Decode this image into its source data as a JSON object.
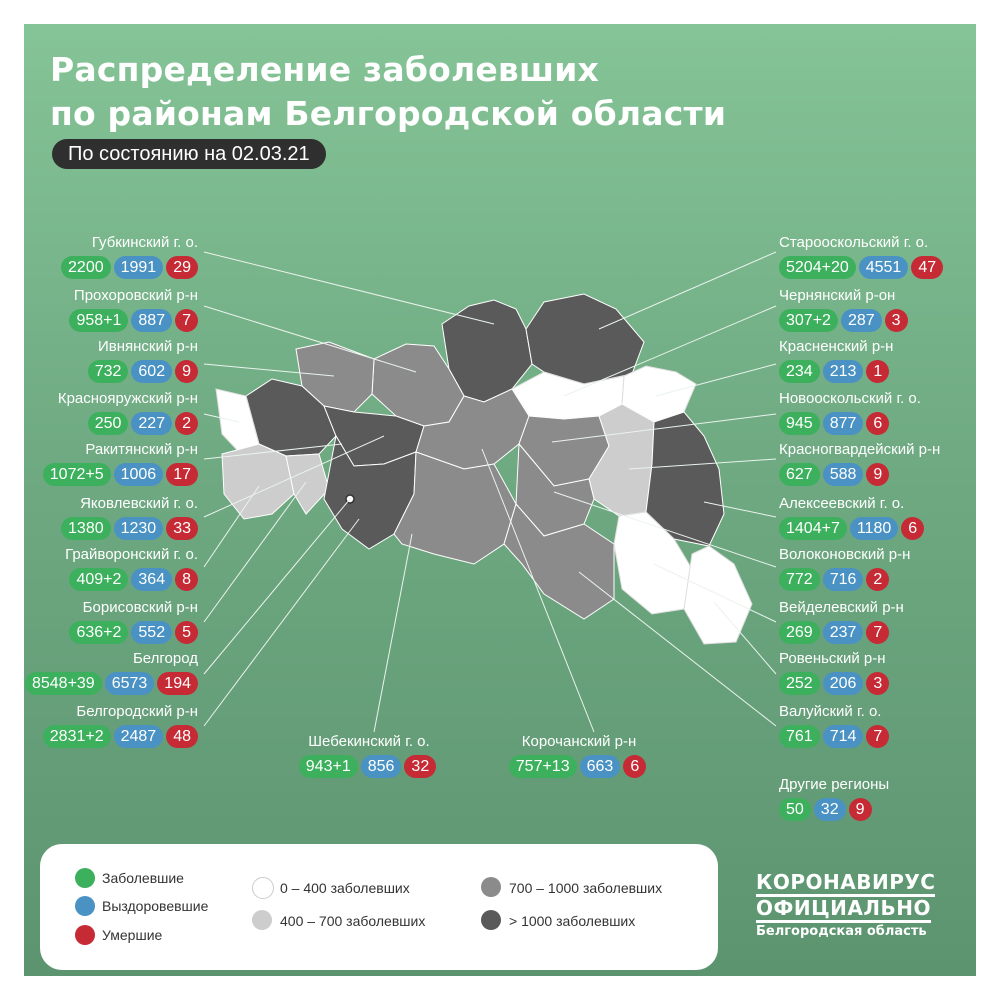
{
  "title_line1": "Распределение заболевших",
  "title_line2": "по районам Белгородской области",
  "date_label": "По состоянию на 02.03.21",
  "colors": {
    "confirmed": "#3cb05c",
    "recovered": "#4a92c4",
    "deaths": "#c62a35",
    "range_0_400": "#ffffff",
    "range_400_700": "#cdcdcd",
    "range_700_1000": "#8b8b8b",
    "range_1000_plus": "#5a5a5a"
  },
  "districts_left": [
    {
      "name": "Губкинский г. о.",
      "confirmed": "2200",
      "recovered": "1991",
      "deaths": "29"
    },
    {
      "name": "Прохоровский р-н",
      "confirmed": "958+1",
      "recovered": "887",
      "deaths": "7"
    },
    {
      "name": "Ивнянский р-н",
      "confirmed": "732",
      "recovered": "602",
      "deaths": "9"
    },
    {
      "name": "Краснояружский р-н",
      "confirmed": "250",
      "recovered": "227",
      "deaths": "2"
    },
    {
      "name": "Ракитянский р-н",
      "confirmed": "1072+5",
      "recovered": "1006",
      "deaths": "17"
    },
    {
      "name": "Яковлевский г. о.",
      "confirmed": "1380",
      "recovered": "1230",
      "deaths": "33"
    },
    {
      "name": "Грайворонский г. о.",
      "confirmed": "409+2",
      "recovered": "364",
      "deaths": "8"
    },
    {
      "name": "Борисовский р-н",
      "confirmed": "636+2",
      "recovered": "552",
      "deaths": "5"
    },
    {
      "name": "Белгород",
      "confirmed": "8548+39",
      "recovered": "6573",
      "deaths": "194"
    },
    {
      "name": "Белгородский р-н",
      "confirmed": "2831+2",
      "recovered": "2487",
      "deaths": "48"
    }
  ],
  "districts_right": [
    {
      "name": "Старооскольский г. о.",
      "confirmed": "5204+20",
      "recovered": "4551",
      "deaths": "47"
    },
    {
      "name": "Чернянский р-он",
      "confirmed": "307+2",
      "recovered": "287",
      "deaths": "3"
    },
    {
      "name": "Красненский р-н",
      "confirmed": "234",
      "recovered": "213",
      "deaths": "1"
    },
    {
      "name": "Новооскольский г. о.",
      "confirmed": "945",
      "recovered": "877",
      "deaths": "6"
    },
    {
      "name": "Красногвардейский р-н",
      "confirmed": "627",
      "recovered": "588",
      "deaths": "9"
    },
    {
      "name": "Алексеевский г. о.",
      "confirmed": "1404+7",
      "recovered": "1180",
      "deaths": "6"
    },
    {
      "name": "Волоконовский р-н",
      "confirmed": "772",
      "recovered": "716",
      "deaths": "2"
    },
    {
      "name": "Вейделевский р-н",
      "confirmed": "269",
      "recovered": "237",
      "deaths": "7"
    },
    {
      "name": "Ровеньский р-н",
      "confirmed": "252",
      "recovered": "206",
      "deaths": "3"
    },
    {
      "name": "Валуйский г. о.",
      "confirmed": "761",
      "recovered": "714",
      "deaths": "7"
    },
    {
      "name": "Другие регионы",
      "confirmed": "50",
      "recovered": "32",
      "deaths": "9"
    }
  ],
  "districts_bottom": [
    {
      "name": "Шебекинский г. о.",
      "confirmed": "943+1",
      "recovered": "856",
      "deaths": "32"
    },
    {
      "name": "Корочанский р-н",
      "confirmed": "757+13",
      "recovered": "663",
      "deaths": "6"
    }
  ],
  "legend": {
    "confirmed": "Заболевшие",
    "recovered": "Выздоровевшие",
    "deaths": "Умершие",
    "range1": "0 – 400 заболевших",
    "range2": "400 – 700 заболевших",
    "range3": "700 – 1000 заболевших",
    "range4": "> 1000 заболевших"
  },
  "logo": {
    "line1": "КОРОНАВИРУС",
    "line2": "ОФИЦИАЛЬНО",
    "line3": "Белгородская область"
  }
}
